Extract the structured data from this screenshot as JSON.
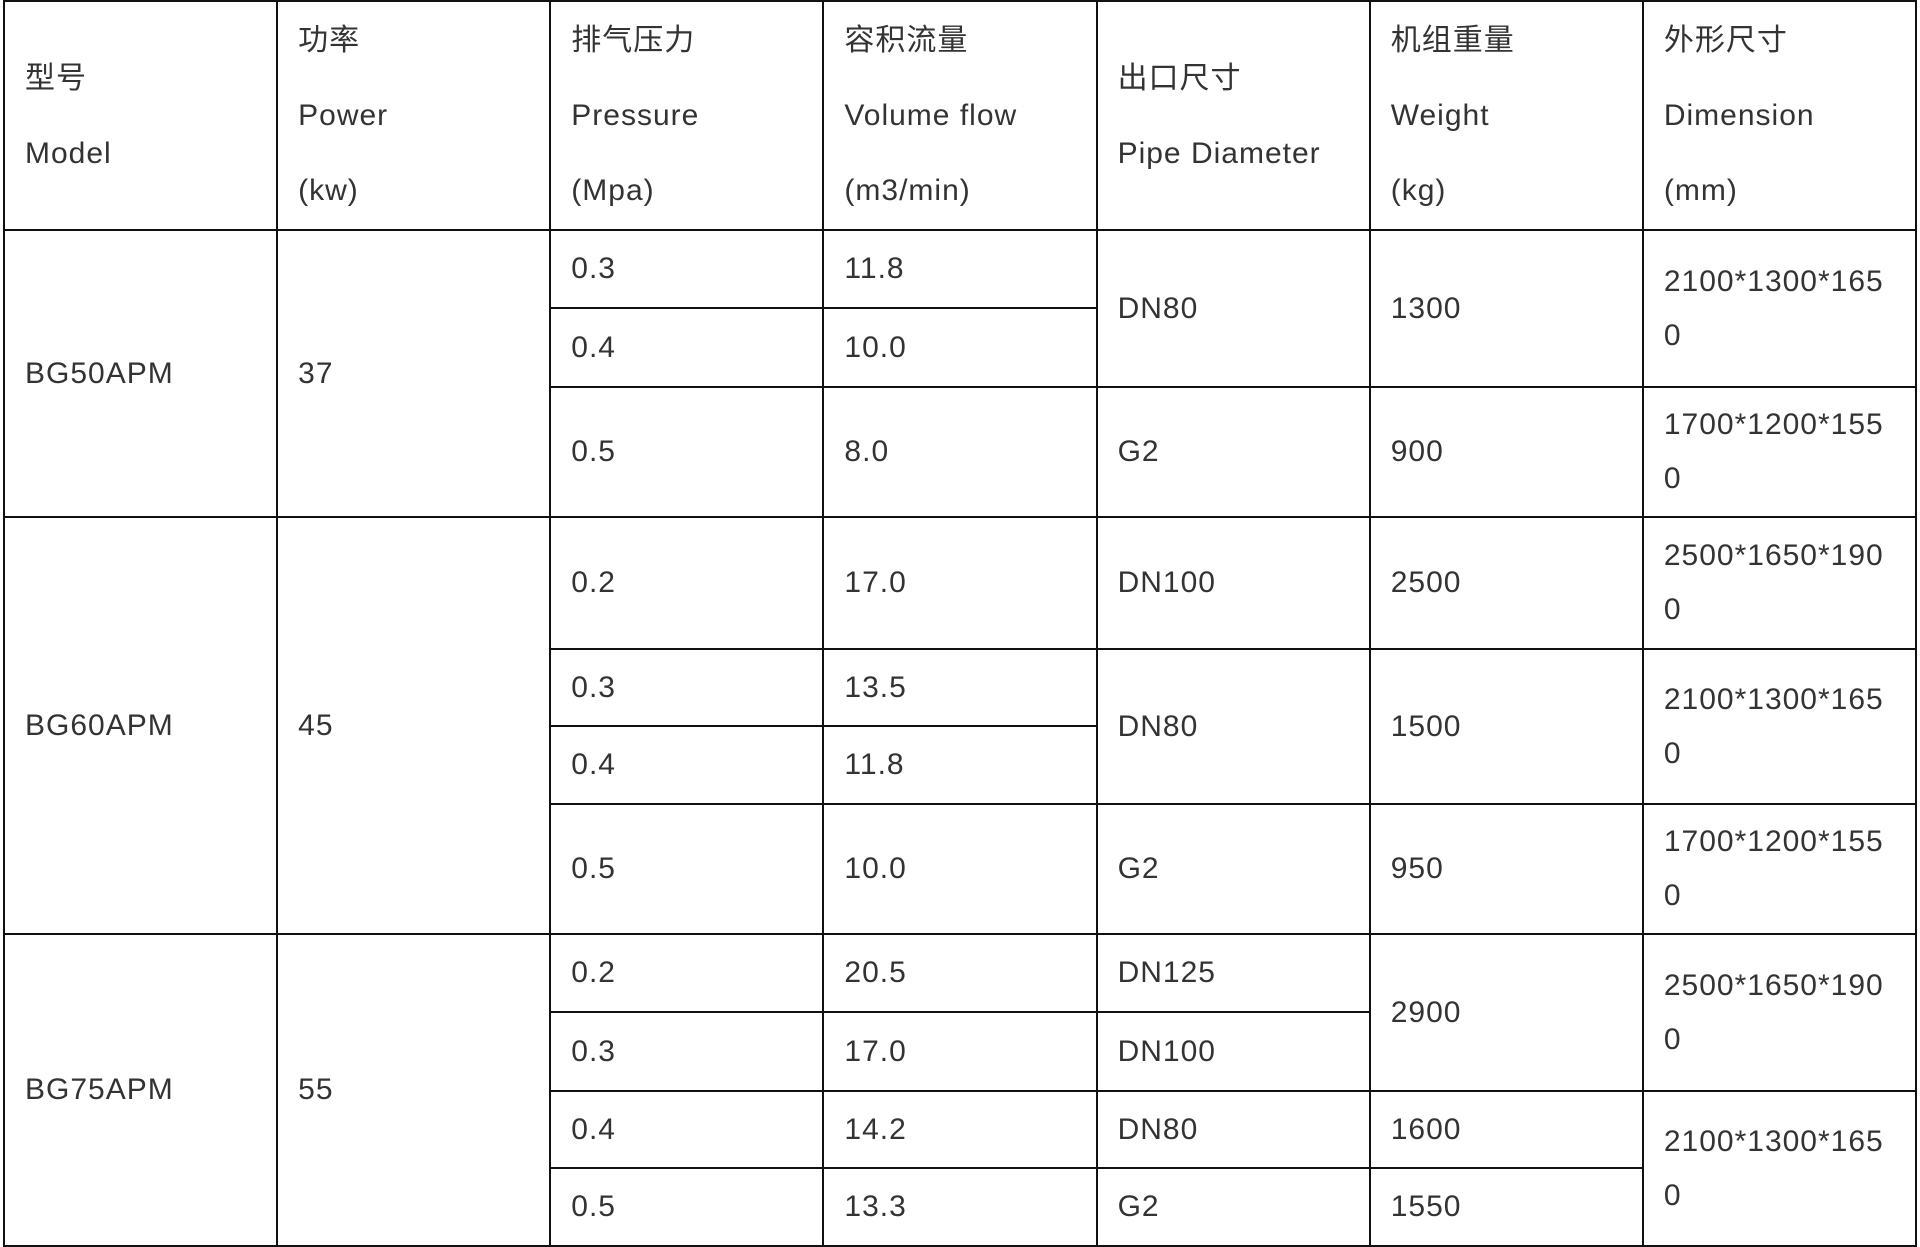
{
  "headers": [
    {
      "zh": "型号",
      "en": "Model",
      "unit": ""
    },
    {
      "zh": "功率",
      "en": "Power",
      "unit": "(kw)"
    },
    {
      "zh": "排气压力",
      "en": "Pressure",
      "unit": "(Mpa)"
    },
    {
      "zh": "容积流量",
      "en": "Volume flow",
      "unit": "(m3/min)"
    },
    {
      "zh": "出口尺寸",
      "en": "Pipe Diameter",
      "unit": ""
    },
    {
      "zh": "机组重量",
      "en": "Weight",
      "unit": "(kg)"
    },
    {
      "zh": "外形尺寸",
      "en": "Dimension",
      "unit": "(mm)"
    }
  ],
  "groups": [
    {
      "model": "BG50APM",
      "power": "37",
      "rows": [
        {
          "pressure": "0.3",
          "flow": "11.8",
          "pipe": "DN80",
          "weight": "1300",
          "dim": "2100*1300*1650"
        },
        {
          "pressure": "0.4",
          "flow": "10.0"
        },
        {
          "pressure": "0.5",
          "flow": "8.0",
          "pipe": "G2",
          "weight": "900",
          "dim": "1700*1200*1550"
        }
      ]
    },
    {
      "model": "BG60APM",
      "power": "45",
      "rows": [
        {
          "pressure": "0.2",
          "flow": "17.0",
          "pipe": "DN100",
          "weight": "2500",
          "dim": "2500*1650*1900"
        },
        {
          "pressure": "0.3",
          "flow": "13.5",
          "pipe": "DN80",
          "weight": "1500",
          "dim": "2100*1300*1650"
        },
        {
          "pressure": "0.4",
          "flow": "11.8"
        },
        {
          "pressure": "0.5",
          "flow": "10.0",
          "pipe": "G2",
          "weight": "950",
          "dim": "1700*1200*1550"
        }
      ]
    },
    {
      "model": "BG75APM",
      "power": "55",
      "rows": [
        {
          "pressure": "0.2",
          "flow": "20.5",
          "pipe": "DN125",
          "weight": "2900",
          "dim": "2500*1650*1900"
        },
        {
          "pressure": "0.3",
          "flow": "17.0",
          "pipe": "DN100"
        },
        {
          "pressure": "0.4",
          "flow": "14.2",
          "pipe": "DN80",
          "weight": "1600",
          "dim": "2100*1300*1650"
        },
        {
          "pressure": "0.5",
          "flow": "13.3",
          "pipe": "G2",
          "weight": "1550"
        }
      ]
    }
  ]
}
